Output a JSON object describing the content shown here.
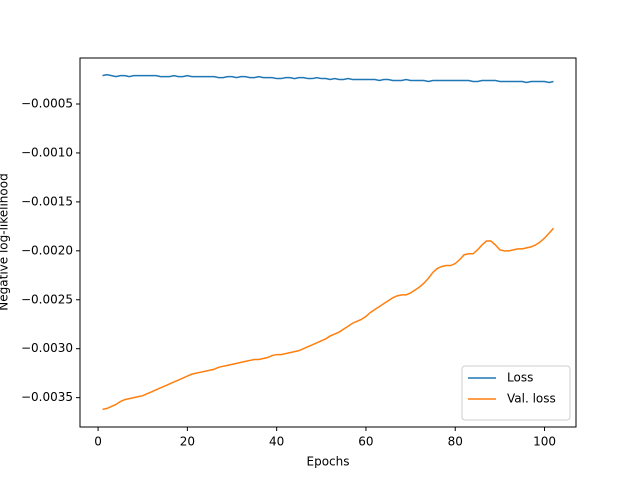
{
  "chart_data": {
    "type": "line",
    "xlabel": "Epochs",
    "ylabel": "Negative log-likelihood",
    "x": [
      1,
      2,
      3,
      4,
      5,
      6,
      7,
      8,
      9,
      10,
      11,
      12,
      13,
      14,
      15,
      16,
      17,
      18,
      19,
      20,
      21,
      22,
      23,
      24,
      25,
      26,
      27,
      28,
      29,
      30,
      31,
      32,
      33,
      34,
      35,
      36,
      37,
      38,
      39,
      40,
      41,
      42,
      43,
      44,
      45,
      46,
      47,
      48,
      49,
      50,
      51,
      52,
      53,
      54,
      55,
      56,
      57,
      58,
      59,
      60,
      61,
      62,
      63,
      64,
      65,
      66,
      67,
      68,
      69,
      70,
      71,
      72,
      73,
      74,
      75,
      76,
      77,
      78,
      79,
      80,
      81,
      82,
      83,
      84,
      85,
      86,
      87,
      88,
      89,
      90,
      91,
      92,
      93,
      94,
      95,
      96,
      97,
      98,
      99,
      100,
      101,
      102
    ],
    "series": [
      {
        "name": "Loss",
        "color": "#1f77b4",
        "values": [
          -0.00021,
          -0.0002,
          -0.00021,
          -0.00022,
          -0.00021,
          -0.00021,
          -0.00022,
          -0.00021,
          -0.00021,
          -0.00021,
          -0.00021,
          -0.00021,
          -0.00021,
          -0.00022,
          -0.00022,
          -0.00022,
          -0.00021,
          -0.00022,
          -0.00022,
          -0.00021,
          -0.00022,
          -0.00022,
          -0.00022,
          -0.00022,
          -0.00022,
          -0.00022,
          -0.00023,
          -0.00023,
          -0.00022,
          -0.00022,
          -0.00023,
          -0.00022,
          -0.00022,
          -0.00023,
          -0.00023,
          -0.00022,
          -0.00023,
          -0.00023,
          -0.00023,
          -0.00024,
          -0.00024,
          -0.00023,
          -0.00023,
          -0.00024,
          -0.00023,
          -0.00023,
          -0.00024,
          -0.00024,
          -0.00023,
          -0.00024,
          -0.00024,
          -0.00025,
          -0.00024,
          -0.00025,
          -0.00025,
          -0.00024,
          -0.00025,
          -0.00025,
          -0.00025,
          -0.00025,
          -0.00025,
          -0.00025,
          -0.00026,
          -0.00025,
          -0.00025,
          -0.00026,
          -0.00026,
          -0.00026,
          -0.00025,
          -0.00026,
          -0.00026,
          -0.00026,
          -0.00026,
          -0.00027,
          -0.00026,
          -0.00026,
          -0.00026,
          -0.00026,
          -0.00026,
          -0.00026,
          -0.00026,
          -0.00026,
          -0.00026,
          -0.00027,
          -0.00027,
          -0.00026,
          -0.00026,
          -0.00026,
          -0.00026,
          -0.00027,
          -0.00027,
          -0.00027,
          -0.00027,
          -0.00027,
          -0.00027,
          -0.00028,
          -0.00027,
          -0.00027,
          -0.00027,
          -0.00027,
          -0.00028,
          -0.00027
        ]
      },
      {
        "name": "Val. loss",
        "color": "#ff7f0e",
        "values": [
          -0.00362,
          -0.00361,
          -0.00359,
          -0.00357,
          -0.00354,
          -0.00352,
          -0.00351,
          -0.0035,
          -0.00349,
          -0.00348,
          -0.00346,
          -0.00344,
          -0.00342,
          -0.0034,
          -0.00338,
          -0.00336,
          -0.00334,
          -0.00332,
          -0.0033,
          -0.00328,
          -0.00326,
          -0.00325,
          -0.00324,
          -0.00323,
          -0.00322,
          -0.00321,
          -0.00319,
          -0.00318,
          -0.00317,
          -0.00316,
          -0.00315,
          -0.00314,
          -0.00313,
          -0.00312,
          -0.00311,
          -0.00311,
          -0.0031,
          -0.00309,
          -0.00307,
          -0.00306,
          -0.00306,
          -0.00305,
          -0.00304,
          -0.00303,
          -0.00302,
          -0.003,
          -0.00298,
          -0.00296,
          -0.00294,
          -0.00292,
          -0.0029,
          -0.00287,
          -0.00285,
          -0.00283,
          -0.0028,
          -0.00277,
          -0.00274,
          -0.00272,
          -0.0027,
          -0.00267,
          -0.00263,
          -0.0026,
          -0.00257,
          -0.00254,
          -0.00251,
          -0.00248,
          -0.00246,
          -0.00245,
          -0.00245,
          -0.00243,
          -0.0024,
          -0.00237,
          -0.00233,
          -0.00228,
          -0.00222,
          -0.00218,
          -0.00216,
          -0.00215,
          -0.00215,
          -0.00213,
          -0.00209,
          -0.00204,
          -0.00203,
          -0.00203,
          -0.00199,
          -0.00194,
          -0.0019,
          -0.0019,
          -0.00194,
          -0.00199,
          -0.002,
          -0.002,
          -0.00199,
          -0.00198,
          -0.00198,
          -0.00197,
          -0.00196,
          -0.00194,
          -0.00191,
          -0.00187,
          -0.00182,
          -0.00177
        ]
      }
    ],
    "xlim": [
      -4.05,
      107.05
    ],
    "xticks": [
      0,
      20,
      40,
      60,
      80,
      100
    ],
    "ylim": [
      -0.0038,
      -3e-05
    ],
    "yticks": [
      {
        "value": -0.0035,
        "label": "−0.0035"
      },
      {
        "value": -0.003,
        "label": "−0.0030"
      },
      {
        "value": -0.0025,
        "label": "−0.0025"
      },
      {
        "value": -0.002,
        "label": "−0.0020"
      },
      {
        "value": -0.0015,
        "label": "−0.0015"
      },
      {
        "value": -0.001,
        "label": "−0.0010"
      },
      {
        "value": -0.0005,
        "label": "−0.0005"
      }
    ],
    "legend": "lower right",
    "grid": false
  }
}
